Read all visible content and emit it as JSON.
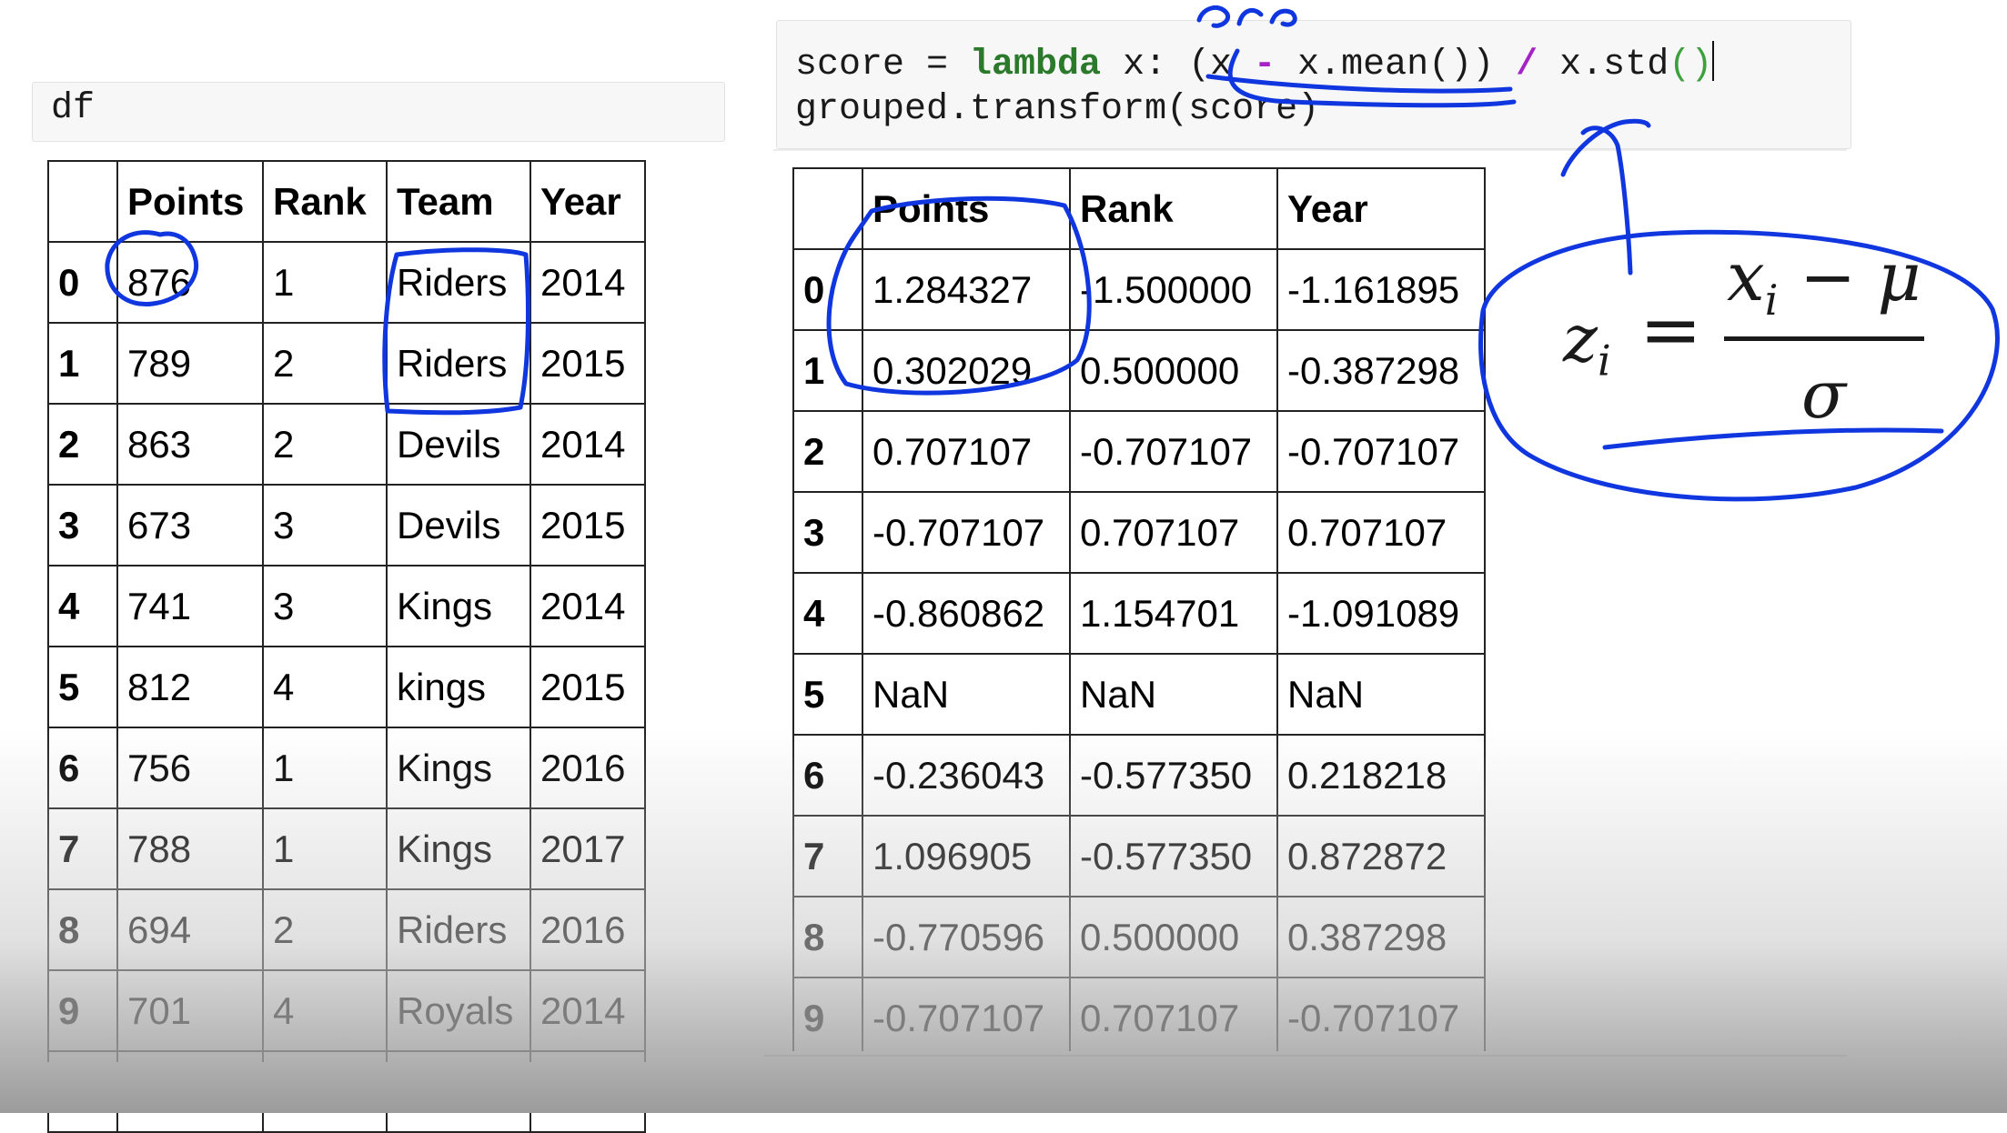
{
  "left_cell": {
    "code": "df"
  },
  "right_cell": {
    "line1": {
      "a": "score = ",
      "kw": "lambda",
      "b": " x: (x ",
      "op1": "-",
      "c": " x.mean()) ",
      "op2": "/",
      "d": " x.std",
      "par": "()"
    },
    "line2": "grouped.transform(score)"
  },
  "left_table": {
    "headers": [
      "",
      "Points",
      "Rank",
      "Team",
      "Year"
    ],
    "rows": [
      [
        "0",
        "876",
        "1",
        "Riders",
        "2014"
      ],
      [
        "1",
        "789",
        "2",
        "Riders",
        "2015"
      ],
      [
        "2",
        "863",
        "2",
        "Devils",
        "2014"
      ],
      [
        "3",
        "673",
        "3",
        "Devils",
        "2015"
      ],
      [
        "4",
        "741",
        "3",
        "Kings",
        "2014"
      ],
      [
        "5",
        "812",
        "4",
        "kings",
        "2015"
      ],
      [
        "6",
        "756",
        "1",
        "Kings",
        "2016"
      ],
      [
        "7",
        "788",
        "1",
        "Kings",
        "2017"
      ],
      [
        "8",
        "694",
        "2",
        "Riders",
        "2016"
      ],
      [
        "9",
        "701",
        "4",
        "Royals",
        "2014"
      ]
    ]
  },
  "right_table": {
    "headers": [
      "",
      "Points",
      "Rank",
      "Year"
    ],
    "rows": [
      [
        "0",
        "1.284327",
        "-1.500000",
        "-1.161895"
      ],
      [
        "1",
        "0.302029",
        "0.500000",
        "-0.387298"
      ],
      [
        "2",
        "0.707107",
        "-0.707107",
        "-0.707107"
      ],
      [
        "3",
        "-0.707107",
        "0.707107",
        "0.707107"
      ],
      [
        "4",
        "-0.860862",
        "1.154701",
        "-1.091089"
      ],
      [
        "5",
        "NaN",
        "NaN",
        "NaN"
      ],
      [
        "6",
        "-0.236043",
        "-0.577350",
        "0.218218"
      ],
      [
        "7",
        "1.096905",
        "-0.577350",
        "0.872872"
      ],
      [
        "8",
        "-0.770596",
        "0.500000",
        "0.387298"
      ],
      [
        "9",
        "-0.707107",
        "0.707107",
        "-0.707107"
      ]
    ]
  },
  "annotation": {
    "ink_color": "#1036e0",
    "formula": {
      "lhs": "z",
      "sub": "i",
      "eq": "=",
      "x": "x",
      "x_sub": "i",
      "minus": " − ",
      "mu": "μ",
      "sigma": "σ"
    }
  }
}
